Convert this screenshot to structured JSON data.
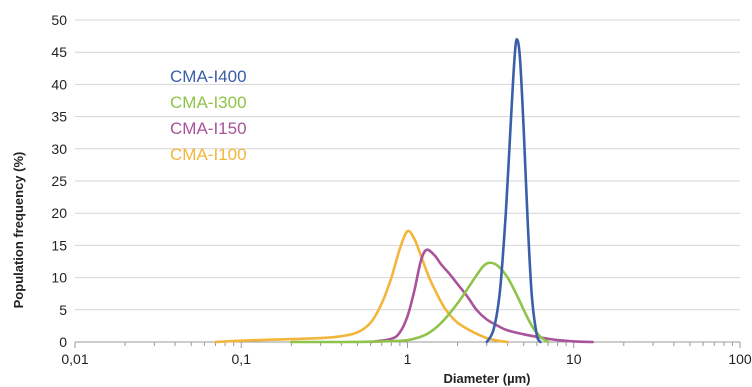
{
  "chart_data": {
    "type": "line",
    "xlabel": "Diameter (µm)",
    "ylabel": "Population frequency (%)",
    "x_scale": "log",
    "xlim": [
      0.01,
      100
    ],
    "ylim": [
      0,
      50
    ],
    "x_ticks": [
      "0,01",
      "0,1",
      "1",
      "10",
      "100"
    ],
    "y_ticks": [
      "0",
      "5",
      "10",
      "15",
      "20",
      "25",
      "30",
      "35",
      "40",
      "45",
      "50"
    ],
    "grid": "horizontal",
    "legend": "top-left",
    "series": [
      {
        "name": "CMA-I400",
        "color": "#3b5ea8",
        "x": [
          3.0,
          3.3,
          3.6,
          3.9,
          4.2,
          4.4,
          4.55,
          4.75,
          5.0,
          5.3,
          5.6,
          6.0,
          6.3
        ],
        "y": [
          0,
          2,
          8,
          20,
          35,
          44,
          47,
          44,
          33,
          18,
          7,
          1,
          0
        ]
      },
      {
        "name": "CMA-I300",
        "color": "#8fc34a",
        "x": [
          0.2,
          0.4,
          0.7,
          1.0,
          1.3,
          1.6,
          2.0,
          2.4,
          2.8,
          3.1,
          3.5,
          4.0,
          4.5,
          5.0,
          5.6,
          6.3,
          7.0
        ],
        "y": [
          0,
          0,
          0.1,
          0.3,
          1.2,
          3,
          6,
          9,
          11.5,
          12.3,
          11.8,
          10,
          7.5,
          5,
          2.5,
          0.8,
          0
        ]
      },
      {
        "name": "CMA-I150",
        "color": "#a9539a",
        "x": [
          0.6,
          0.8,
          0.9,
          1.0,
          1.1,
          1.2,
          1.3,
          1.45,
          1.6,
          1.8,
          2.0,
          2.3,
          2.6,
          3.0,
          3.5,
          4.0,
          5.0,
          6.0,
          7.0,
          8.0,
          10.0,
          13.0
        ],
        "y": [
          0,
          0.5,
          1.5,
          4,
          8,
          12.5,
          14.3,
          13.5,
          12,
          10.5,
          9,
          7,
          5,
          3.5,
          2.5,
          1.8,
          1.2,
          0.8,
          0.5,
          0.3,
          0.1,
          0
        ]
      },
      {
        "name": "CMA-I100",
        "color": "#f2b63c",
        "x": [
          0.07,
          0.1,
          0.15,
          0.2,
          0.3,
          0.4,
          0.5,
          0.6,
          0.7,
          0.8,
          0.9,
          1.0,
          1.1,
          1.2,
          1.35,
          1.5,
          1.7,
          2.0,
          2.5,
          3.0,
          3.5,
          4.0
        ],
        "y": [
          0,
          0.2,
          0.35,
          0.45,
          0.6,
          0.9,
          1.5,
          3,
          6,
          10,
          14.5,
          17.2,
          16,
          13.5,
          10,
          7.5,
          5,
          3,
          1.5,
          0.6,
          0.2,
          0
        ]
      }
    ]
  }
}
